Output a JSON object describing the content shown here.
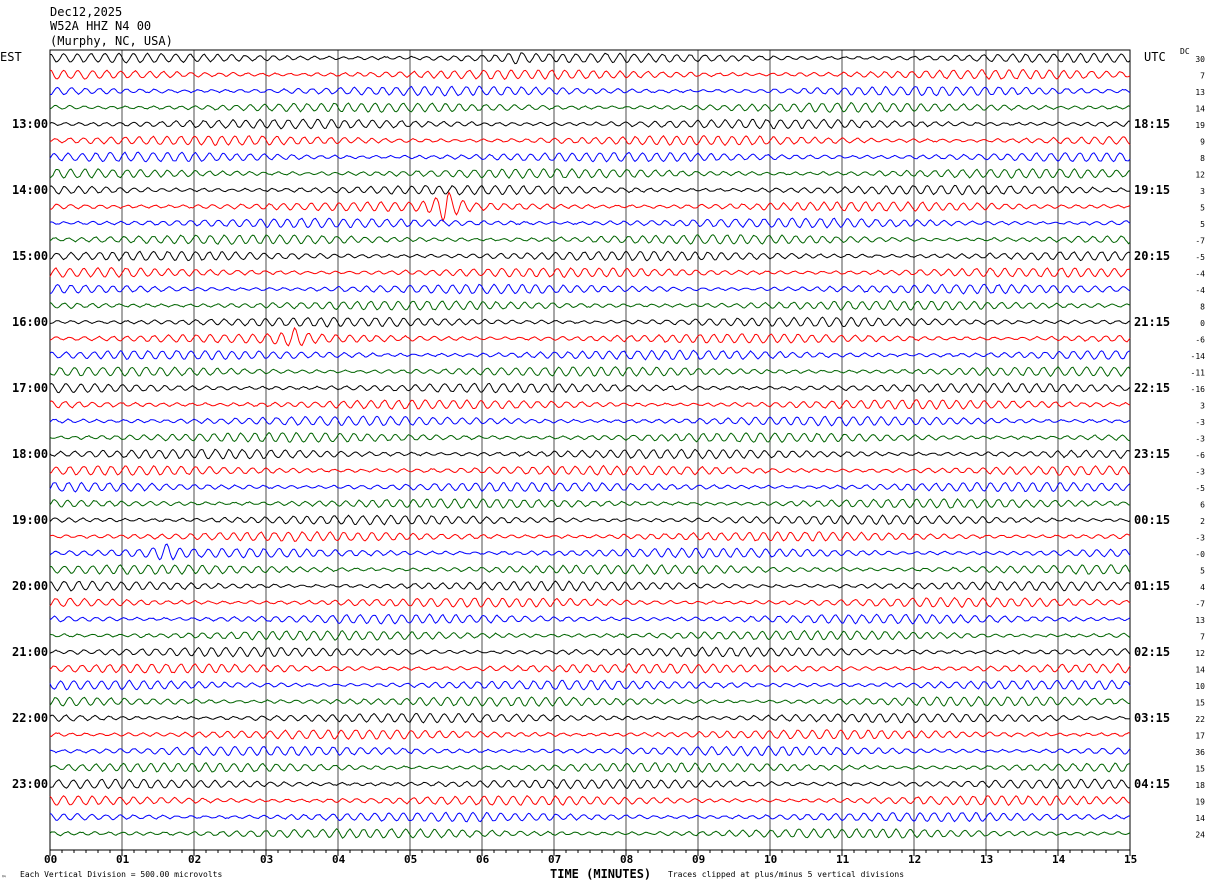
{
  "header": {
    "date": "Dec12,2025",
    "station": "W52A HHZ N4 00",
    "location": "(Murphy, NC, USA)"
  },
  "left_tz": "EST",
  "right_tz": "UTC",
  "dc_label": "DC",
  "footer": {
    "scale": "Each Vertical Division =  500.00 microvolts",
    "clip_note": "Traces clipped at plus/minus 5 vertical divisions",
    "corner": "™"
  },
  "chart_data": {
    "type": "line",
    "title": "W52A HHZ N4 00 helicorder",
    "xlabel": "TIME (MINUTES)",
    "xlim": [
      0,
      15
    ],
    "x_ticks": [
      "00",
      "01",
      "02",
      "03",
      "04",
      "05",
      "06",
      "07",
      "08",
      "09",
      "10",
      "11",
      "12",
      "13",
      "14",
      "15"
    ],
    "rows_per_hour": 4,
    "row_minutes": 15,
    "left_hour_labels": [
      "13:00",
      "14:00",
      "15:00",
      "16:00",
      "17:00",
      "18:00",
      "19:00",
      "20:00",
      "21:00",
      "22:00",
      "23:00"
    ],
    "right_hour_labels": [
      "18:15",
      "19:15",
      "20:15",
      "21:15",
      "22:15",
      "23:15",
      "00:15",
      "01:15",
      "02:15",
      "03:15",
      "04:15"
    ],
    "trace_colors": [
      "#000000",
      "#ff0000",
      "#0000ff",
      "#006400"
    ],
    "dc_offsets": [
      30,
      7,
      13,
      14,
      19,
      9,
      8,
      12,
      3,
      5,
      5,
      -7,
      -5,
      -4,
      -4,
      8,
      0,
      -6,
      -14,
      -11,
      -16,
      3,
      -3,
      -3,
      -6,
      -3,
      -5,
      6,
      2,
      -3,
      "-0",
      5,
      4,
      -7,
      13,
      7,
      12,
      14,
      10,
      15,
      22,
      17,
      36,
      15,
      18,
      19,
      14,
      24
    ],
    "events": [
      {
        "row": 9,
        "minute": 5.5,
        "amplitude": "large"
      },
      {
        "row": 17,
        "minute": 3.4,
        "amplitude": "medium"
      },
      {
        "row": 30,
        "minute": 1.6,
        "amplitude": "medium"
      },
      {
        "row": 0,
        "minute": 6.5,
        "amplitude": "small"
      }
    ]
  }
}
